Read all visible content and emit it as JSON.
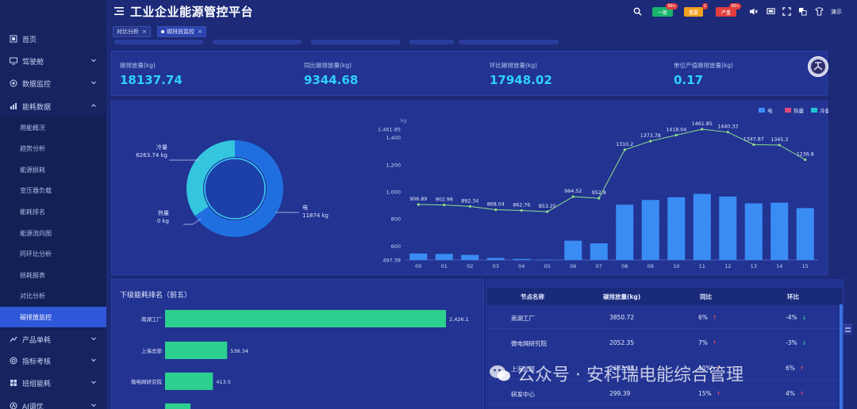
{
  "header": {
    "title": "工业企业能源管控平台",
    "badges": [
      {
        "label": "一般",
        "count": "99+",
        "color": "#19b36b"
      },
      {
        "label": "重要",
        "count": "2",
        "color": "#f0a020"
      },
      {
        "label": "严重",
        "count": "99+",
        "color": "#e23c3c"
      }
    ],
    "demo_label": "演示",
    "icons": [
      "menu-icon",
      "search-icon",
      "mute-icon",
      "screen-icon",
      "fullscreen-icon",
      "language-icon",
      "theme-icon"
    ]
  },
  "tabs": [
    {
      "label": "对比分析",
      "active": false
    },
    {
      "label": "碳排放监控",
      "active": true
    }
  ],
  "sidebar": {
    "items": [
      {
        "label": "首页",
        "icon": "home-icon"
      },
      {
        "label": "驾驶舱",
        "icon": "monitor-icon"
      },
      {
        "label": "数据监控",
        "icon": "eye-icon"
      },
      {
        "label": "能耗数据",
        "icon": "chart-icon"
      },
      {
        "label": "产品单耗",
        "icon": "product-icon"
      },
      {
        "label": "指标考核",
        "icon": "target-icon"
      },
      {
        "label": "班组能耗",
        "icon": "team-icon"
      },
      {
        "label": "AI调优",
        "icon": "ai-icon"
      }
    ],
    "sub_items": [
      "用能概况",
      "趋势分析",
      "能源损耗",
      "变压器负载",
      "能耗排名",
      "能源流向图",
      "同环比分析",
      "损耗报表",
      "对比分析",
      "碳排放监控"
    ],
    "active_sub": "碳排放监控"
  },
  "kpis": [
    {
      "label": "碳排放量(kg)",
      "value": "18137.74"
    },
    {
      "label": "同比碳排放量(kg)",
      "value": "9344.68"
    },
    {
      "label": "环比碳排放量(kg)",
      "value": "17948.02"
    },
    {
      "label": "单位产值碳排放量(kg)",
      "value": "0.17"
    }
  ],
  "donut": {
    "slices": [
      {
        "name": "电",
        "value": 11874,
        "label": "11874 kg",
        "color": "#1f6fe0"
      },
      {
        "name": "冷量",
        "value": 6263.74,
        "label": "6263.74 kg",
        "color": "#34c5df"
      },
      {
        "name": "热量",
        "value": 0,
        "label": "0 kg",
        "color": "#e04c7a"
      }
    ]
  },
  "legend": [
    {
      "name": "电",
      "color": "#3f8cff"
    },
    {
      "name": "热量",
      "color": "#e04c7a"
    },
    {
      "name": "冷量",
      "color": "#22c3d6"
    }
  ],
  "chart_data": {
    "type": "bar",
    "categories": [
      "00",
      "01",
      "02",
      "03",
      "04",
      "05",
      "06",
      "07",
      "08",
      "09",
      "10",
      "11",
      "12",
      "13",
      "14",
      "15"
    ],
    "ylabel": "kg",
    "yticks": [
      "497.38",
      "600",
      "800",
      "1,000",
      "1,200",
      "1,400",
      "1,461.85"
    ],
    "ylim": [
      497.38,
      1461.85
    ],
    "series": [
      {
        "name": "电",
        "type": "bar",
        "values": [
          545,
          542,
          535,
          512,
          505,
          500,
          640,
          620,
          905,
          940,
          960,
          985,
          965,
          915,
          920,
          880
        ]
      },
      {
        "type": "line",
        "values": [
          906.89,
          902.98,
          892.34,
          868.04,
          862.76,
          853.25,
          964.52,
          952.8,
          1310.2,
          1373.78,
          1418.04,
          1461.85,
          1440.33,
          1347.87,
          1345.3,
          1236.8
        ],
        "labels": [
          "906.89",
          "902.98",
          "892.34",
          "868.04",
          "862.76",
          "853.25",
          "964.52",
          "952.8",
          "1310.2",
          "1373.78",
          "1418.04",
          "1461.85",
          "1440.33",
          "1347.87",
          "1345.3",
          "1236.8"
        ]
      }
    ]
  },
  "ranking": {
    "title": "下级能耗排名（前五）",
    "max": 2426.1,
    "items": [
      {
        "name": "南湖工厂",
        "value": 2426.1,
        "label": "2,426.1"
      },
      {
        "name": "上海总部",
        "value": 536.34,
        "label": "536.34"
      },
      {
        "name": "微电网研究院",
        "value": 413.5,
        "label": "413.5"
      },
      {
        "name": "",
        "value": 220,
        "label": ""
      }
    ]
  },
  "table": {
    "headers": [
      "节点名称",
      "碳排放量(kg)",
      "同比",
      "环比"
    ],
    "rows": [
      {
        "name": "南湖工厂",
        "value": "3850.72",
        "yoy": "6%",
        "yoy_dir": "up",
        "mom": "-4%",
        "mom_dir": "down"
      },
      {
        "name": "微电网研究院",
        "value": "2052.35",
        "yoy": "7%",
        "yoy_dir": "up",
        "mom": "-3%",
        "mom_dir": "down"
      },
      {
        "name": "上海总部",
        "value": "2682.08",
        "yoy": "10%",
        "yoy_dir": "up",
        "mom": "6%",
        "mom_dir": "up"
      },
      {
        "name": "研发中心",
        "value": "299.39",
        "yoy": "15%",
        "yoy_dir": "up",
        "mom": "4%",
        "mom_dir": "up"
      }
    ]
  },
  "watermark": "公众号 · 安科瑞电能综合管理"
}
